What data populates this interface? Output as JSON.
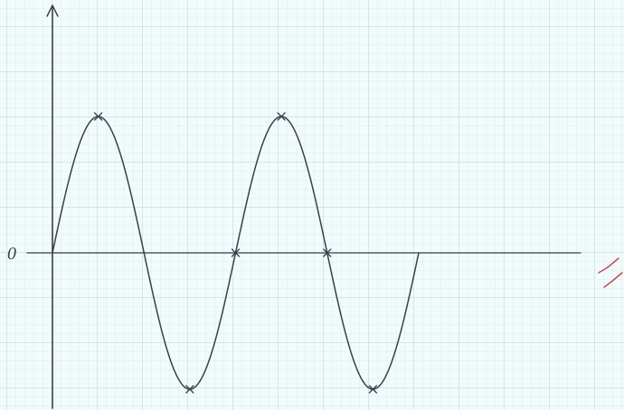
{
  "axis_label": "0"
}
